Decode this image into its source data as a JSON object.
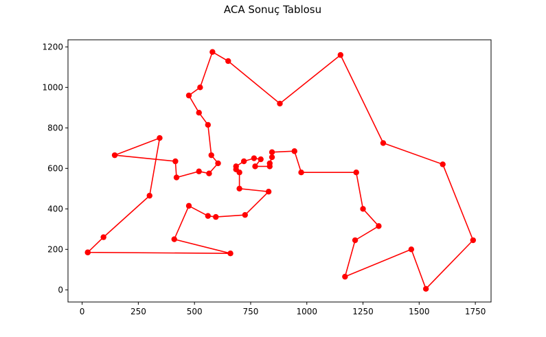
{
  "chart_data": {
    "type": "line",
    "title": "ACA Sonuç Tablosu",
    "xlabel": "",
    "ylabel": "",
    "xlim": [
      -63,
      1820
    ],
    "ylim": [
      -60,
      1235
    ],
    "xticks": [
      0,
      250,
      500,
      750,
      1000,
      1250,
      1500,
      1750
    ],
    "yticks": [
      0,
      200,
      400,
      600,
      800,
      1000,
      1200
    ],
    "grid": false,
    "color": "#ff0000",
    "series": [
      {
        "marker": "circle",
        "x": [
          25,
          95,
          300,
          345,
          145,
          415,
          420,
          520,
          565,
          605,
          575,
          560,
          520,
          475,
          525,
          580,
          650,
          880,
          1150,
          1340,
          1605,
          1740,
          1530,
          1465,
          1170,
          1215,
          1320,
          1250,
          1220,
          975,
          945,
          845,
          845,
          835,
          835,
          770,
          795,
          765,
          720,
          685,
          685,
          700,
          700,
          830,
          725,
          595,
          560,
          475,
          410,
          660,
          25
        ],
        "y": [
          185,
          260,
          465,
          750,
          665,
          635,
          555,
          585,
          575,
          625,
          665,
          815,
          875,
          960,
          1000,
          1175,
          1130,
          920,
          1160,
          725,
          620,
          245,
          5,
          200,
          65,
          245,
          315,
          400,
          580,
          580,
          685,
          680,
          655,
          625,
          610,
          610,
          645,
          650,
          635,
          610,
          595,
          580,
          500,
          485,
          370,
          360,
          365,
          415,
          250,
          180,
          185
        ]
      }
    ]
  }
}
